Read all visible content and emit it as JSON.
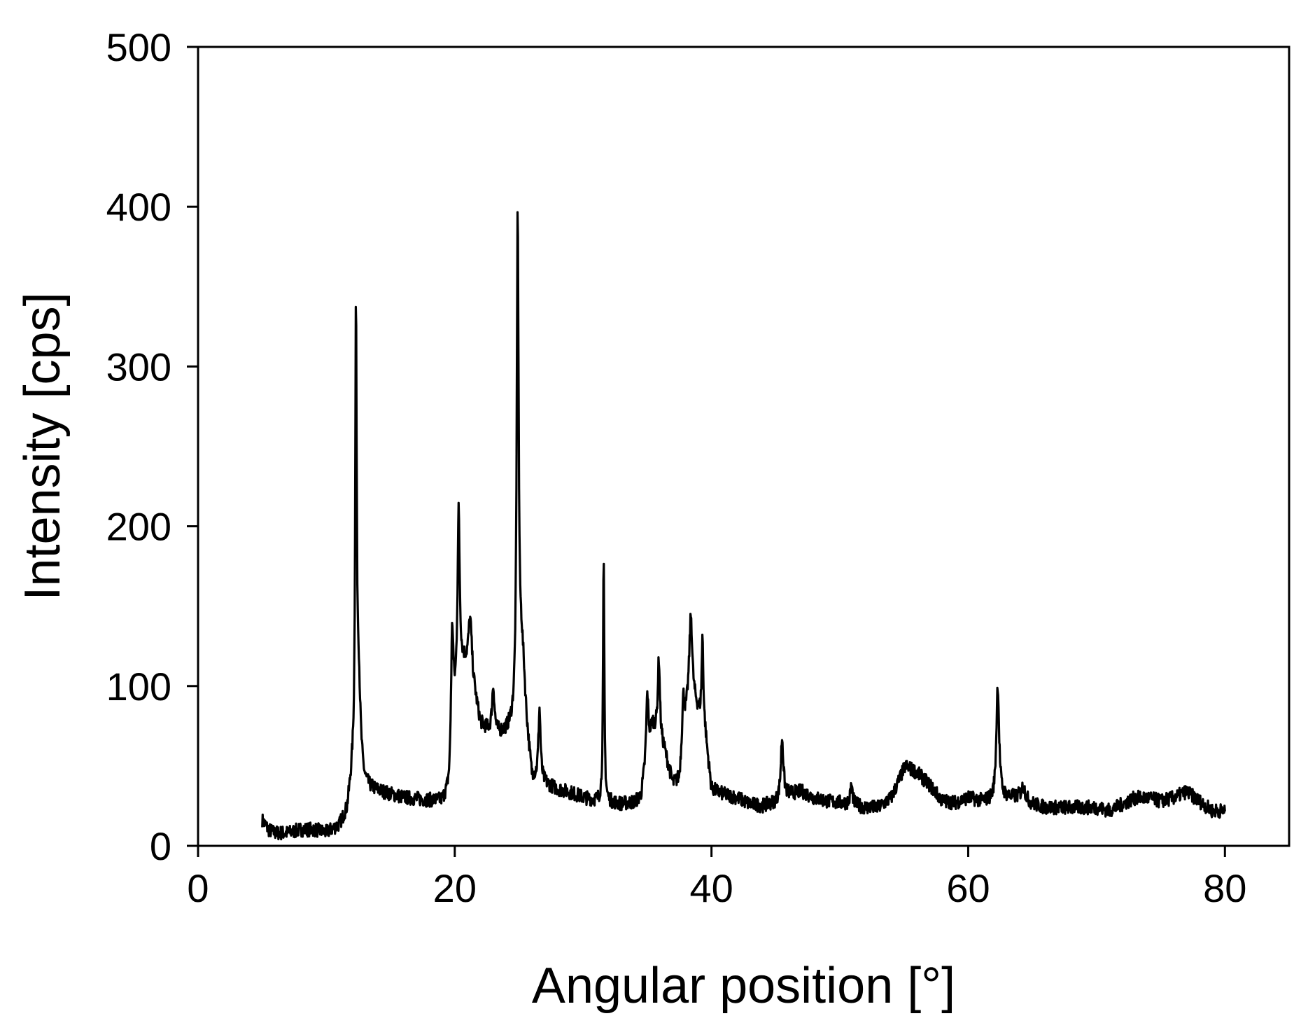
{
  "chart_data": {
    "type": "line",
    "title": "",
    "xlabel": "Angular position [°]",
    "ylabel": "Intensity [cps]",
    "xlim": [
      0,
      85
    ],
    "ylim": [
      0,
      500
    ],
    "xticks": [
      0,
      20,
      40,
      60,
      80
    ],
    "yticks": [
      0,
      100,
      200,
      300,
      400,
      500
    ],
    "xtick_labels": [
      "0",
      "20",
      "40",
      "60",
      "80"
    ],
    "ytick_labels": [
      "0",
      "100",
      "200",
      "300",
      "400",
      "500"
    ],
    "grid": false,
    "legend": "none",
    "line_color": "#000000",
    "series": [
      {
        "baseline": [
          [
            5,
            16
          ],
          [
            5.5,
            10
          ],
          [
            6,
            8
          ],
          [
            7,
            8
          ],
          [
            8,
            10
          ],
          [
            9,
            10
          ],
          [
            10,
            8
          ],
          [
            11,
            12
          ],
          [
            11.6,
            20
          ],
          [
            12.0,
            40
          ],
          [
            12.6,
            40
          ],
          [
            13.0,
            36
          ],
          [
            14,
            34
          ],
          [
            15,
            32
          ],
          [
            16,
            30
          ],
          [
            17,
            29
          ],
          [
            18,
            28
          ],
          [
            19,
            27
          ],
          [
            19.6,
            32
          ],
          [
            20.3,
            110
          ],
          [
            20.8,
            110
          ],
          [
            21.6,
            90
          ],
          [
            22,
            75
          ],
          [
            23,
            68
          ],
          [
            24,
            70
          ],
          [
            24.5,
            72
          ],
          [
            25.4,
            80
          ],
          [
            26,
            40
          ],
          [
            27,
            38
          ],
          [
            28,
            35
          ],
          [
            29,
            33
          ],
          [
            30,
            30
          ],
          [
            31,
            28
          ],
          [
            32,
            27
          ],
          [
            33,
            26
          ],
          [
            34,
            27
          ],
          [
            34.5,
            30
          ],
          [
            35.4,
            75
          ],
          [
            36.3,
            60
          ],
          [
            37,
            38
          ],
          [
            37.5,
            40
          ],
          [
            38.3,
            100
          ],
          [
            39.5,
            70
          ],
          [
            40,
            35
          ],
          [
            41,
            32
          ],
          [
            42,
            30
          ],
          [
            43,
            26
          ],
          [
            44,
            25
          ],
          [
            45,
            27
          ],
          [
            46,
            32
          ],
          [
            47,
            34
          ],
          [
            48,
            30
          ],
          [
            49,
            28
          ],
          [
            50,
            27
          ],
          [
            51,
            26
          ],
          [
            52,
            24
          ],
          [
            53,
            24
          ],
          [
            54,
            30
          ],
          [
            55.1,
            50
          ],
          [
            56,
            46
          ],
          [
            57,
            38
          ],
          [
            58,
            28
          ],
          [
            59,
            27
          ],
          [
            60,
            30
          ],
          [
            61,
            28
          ],
          [
            62,
            28
          ],
          [
            63,
            30
          ],
          [
            64,
            30
          ],
          [
            65,
            26
          ],
          [
            66,
            24
          ],
          [
            67,
            24
          ],
          [
            68,
            24
          ],
          [
            69,
            24
          ],
          [
            70,
            24
          ],
          [
            71,
            22
          ],
          [
            72,
            26
          ],
          [
            73,
            30
          ],
          [
            74,
            30
          ],
          [
            75,
            28
          ],
          [
            76,
            30
          ],
          [
            77,
            34
          ],
          [
            78,
            28
          ],
          [
            79,
            22
          ],
          [
            80,
            22
          ]
        ],
        "peaks": [
          [
            12.3,
            276,
            0.07
          ],
          [
            12.5,
            60,
            0.18
          ],
          [
            19.8,
            80,
            0.12
          ],
          [
            20.3,
            95,
            0.1
          ],
          [
            21.2,
            40,
            0.18
          ],
          [
            23.0,
            30,
            0.12
          ],
          [
            24.9,
            305,
            0.09
          ],
          [
            25.2,
            40,
            0.25
          ],
          [
            26.6,
            45,
            0.1
          ],
          [
            31.6,
            150,
            0.06
          ],
          [
            35.0,
            40,
            0.1
          ],
          [
            35.9,
            50,
            0.1
          ],
          [
            37.8,
            30,
            0.12
          ],
          [
            38.4,
            45,
            0.12
          ],
          [
            39.3,
            55,
            0.08
          ],
          [
            45.5,
            38,
            0.12
          ],
          [
            50.9,
            12,
            0.1
          ],
          [
            62.3,
            72,
            0.13
          ],
          [
            64.3,
            8,
            0.2
          ]
        ],
        "x_start": 5,
        "x_end": 80
      }
    ]
  }
}
